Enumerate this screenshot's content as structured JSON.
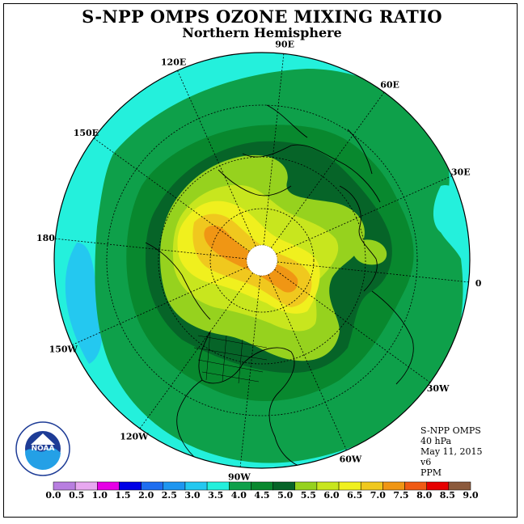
{
  "title": "S-NPP OMPS OZONE MIXING RATIO",
  "subtitle": "Northern Hemisphere",
  "longitude_labels": [
    "90E",
    "60E",
    "30E",
    "0",
    "30W",
    "60W",
    "90W",
    "120W",
    "150W",
    "180",
    "150E",
    "120E"
  ],
  "info": {
    "instrument": "S-NPP OMPS",
    "level": "40 hPa",
    "date": "May 11, 2015",
    "version": "v6",
    "units": "PPM"
  },
  "color_scale": {
    "labels": [
      "0.0",
      "0.5",
      "1.0",
      "1.5",
      "2.0",
      "2.5",
      "3.0",
      "3.5",
      "4.0",
      "4.5",
      "5.0",
      "5.5",
      "6.0",
      "6.5",
      "7.0",
      "7.5",
      "8.0",
      "8.5",
      "9.0"
    ],
    "colors": [
      "#b87ee0",
      "#e8a8f0",
      "#e600e6",
      "#0000e6",
      "#1e6ef0",
      "#1e96f0",
      "#24c8f0",
      "#24f0dc",
      "#0ea04a",
      "#08882e",
      "#066428",
      "#96d21e",
      "#c8e61e",
      "#f0f01e",
      "#f0c81e",
      "#f09614",
      "#f05a14",
      "#e60000",
      "#8c5a3c"
    ]
  },
  "logo": {
    "text": "NOAA"
  }
}
